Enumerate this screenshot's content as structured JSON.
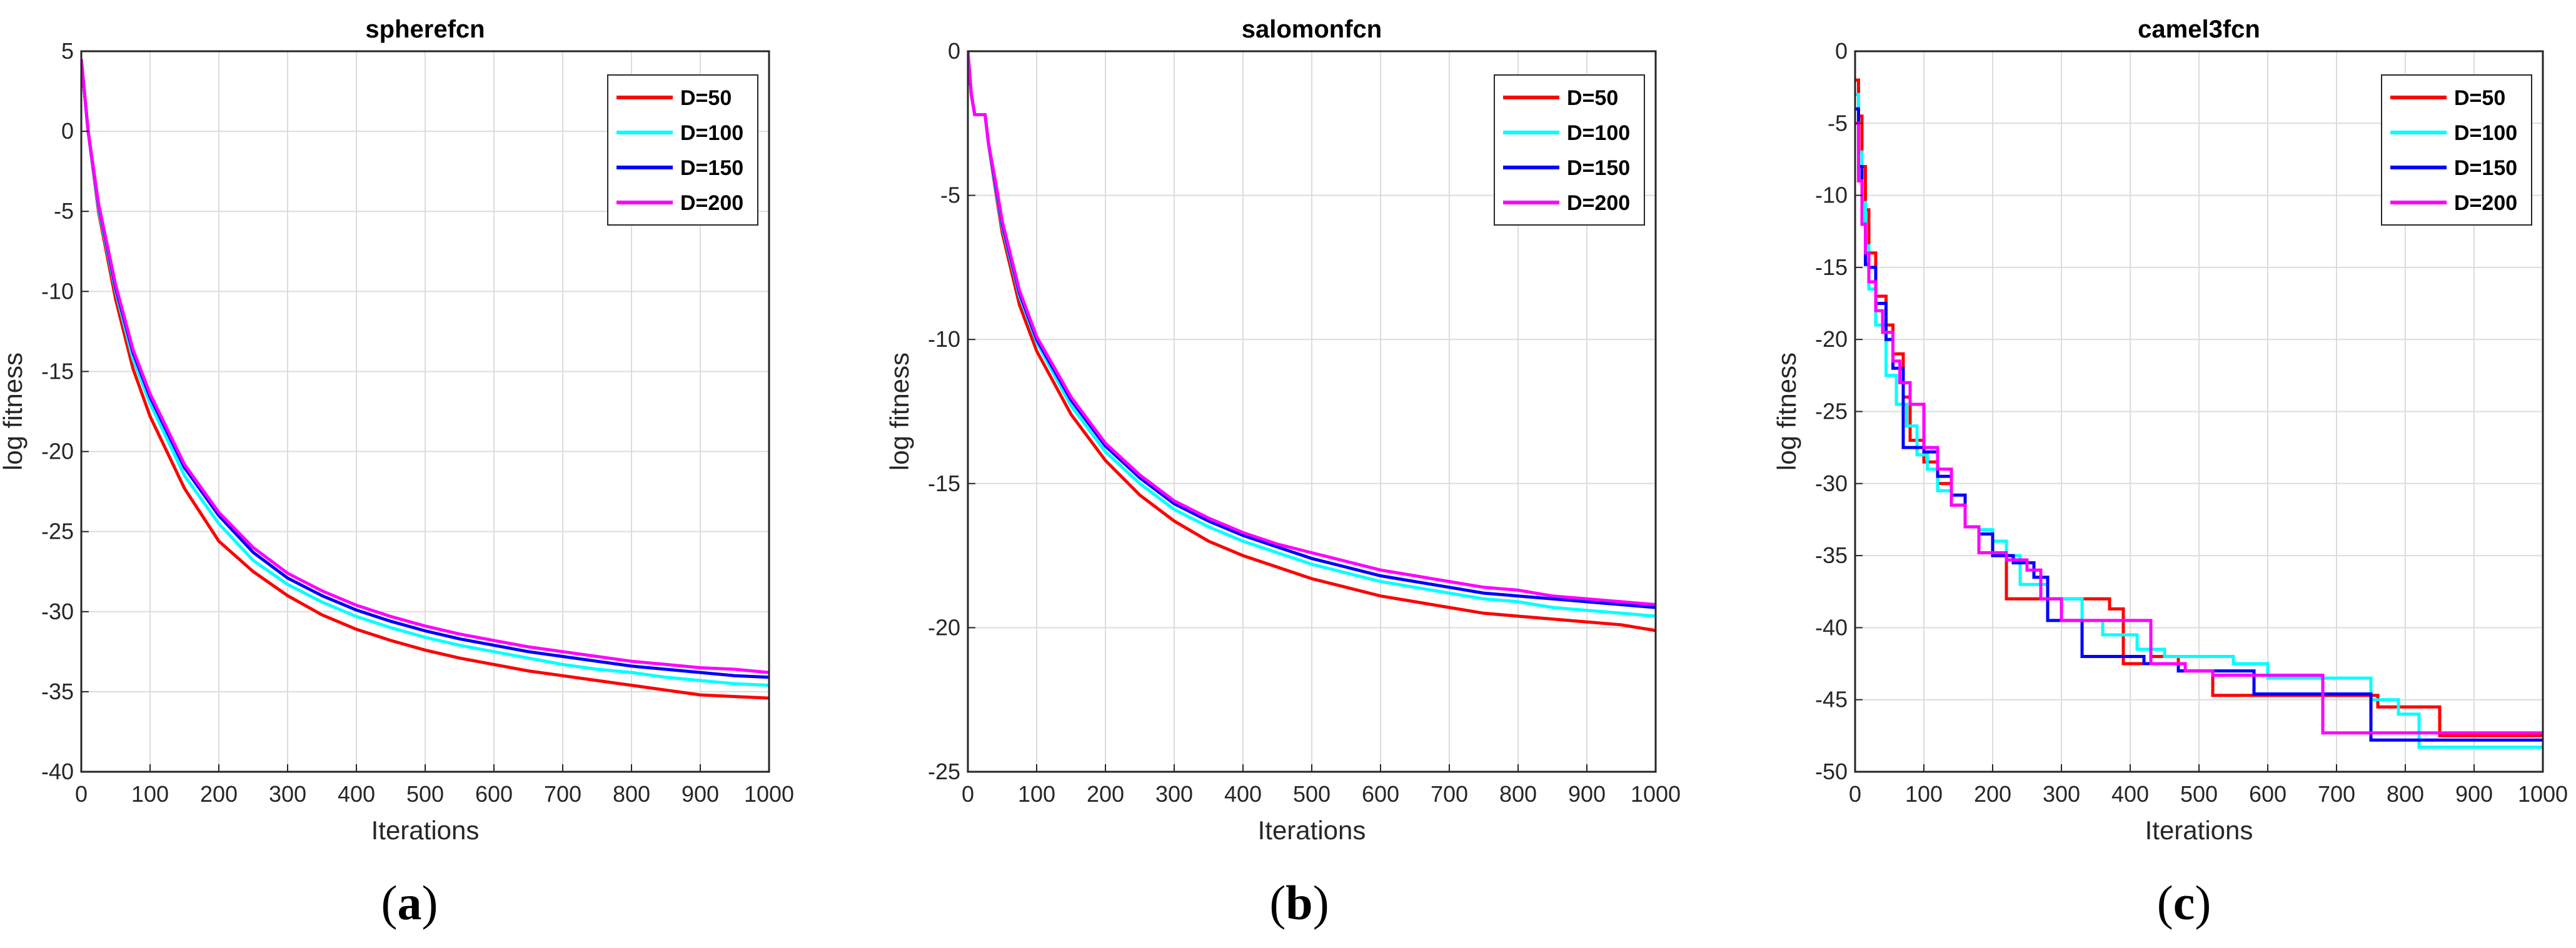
{
  "chart_data": [
    {
      "type": "line",
      "title": "spherefcn",
      "xlabel": "Iterations",
      "ylabel": "log fitness",
      "caption": "a",
      "xlim": [
        0,
        1000
      ],
      "ylim": [
        -40,
        5
      ],
      "xticks": [
        0,
        100,
        200,
        300,
        400,
        500,
        600,
        700,
        800,
        900,
        1000
      ],
      "yticks": [
        5,
        0,
        -5,
        -10,
        -15,
        -20,
        -25,
        -30,
        -35,
        -40
      ],
      "grid": true,
      "legend_position": "top-right",
      "series": [
        {
          "name": "D=50",
          "color": "#ff0000",
          "x": [
            0,
            10,
            25,
            50,
            75,
            100,
            150,
            200,
            250,
            300,
            350,
            400,
            450,
            500,
            550,
            600,
            650,
            700,
            750,
            800,
            850,
            900,
            950,
            1000
          ],
          "y": [
            4.5,
            0,
            -5,
            -10.5,
            -14.8,
            -17.8,
            -22.3,
            -25.6,
            -27.5,
            -29,
            -30.2,
            -31.1,
            -31.8,
            -32.4,
            -32.9,
            -33.3,
            -33.7,
            -34,
            -34.3,
            -34.6,
            -34.9,
            -35.2,
            -35.3,
            -35.4
          ]
        },
        {
          "name": "D=100",
          "color": "#00ffff",
          "x": [
            0,
            10,
            25,
            50,
            75,
            100,
            150,
            200,
            250,
            300,
            350,
            400,
            450,
            500,
            550,
            600,
            650,
            700,
            750,
            800,
            850,
            900,
            950,
            1000
          ],
          "y": [
            4.5,
            0,
            -4.8,
            -10,
            -14.2,
            -17,
            -21.5,
            -24.5,
            -26.8,
            -28.3,
            -29.4,
            -30.3,
            -31,
            -31.6,
            -32.1,
            -32.5,
            -32.9,
            -33.3,
            -33.6,
            -33.8,
            -34.1,
            -34.3,
            -34.5,
            -34.6
          ]
        },
        {
          "name": "D=150",
          "color": "#0000ff",
          "x": [
            0,
            10,
            25,
            50,
            75,
            100,
            150,
            200,
            250,
            300,
            350,
            400,
            450,
            500,
            550,
            600,
            650,
            700,
            750,
            800,
            850,
            900,
            950,
            1000
          ],
          "y": [
            4.5,
            0,
            -4.6,
            -9.8,
            -13.8,
            -16.6,
            -21,
            -24,
            -26.3,
            -27.9,
            -29,
            -29.9,
            -30.6,
            -31.2,
            -31.7,
            -32.1,
            -32.5,
            -32.8,
            -33.1,
            -33.4,
            -33.6,
            -33.8,
            -34,
            -34.1
          ]
        },
        {
          "name": "D=200",
          "color": "#ff00ff",
          "x": [
            0,
            10,
            25,
            50,
            75,
            100,
            150,
            200,
            250,
            300,
            350,
            400,
            450,
            500,
            550,
            600,
            650,
            700,
            750,
            800,
            850,
            900,
            950,
            1000
          ],
          "y": [
            4.5,
            0,
            -4.5,
            -9.6,
            -13.6,
            -16.4,
            -20.8,
            -23.8,
            -26,
            -27.6,
            -28.7,
            -29.6,
            -30.3,
            -30.9,
            -31.4,
            -31.8,
            -32.2,
            -32.5,
            -32.8,
            -33.1,
            -33.3,
            -33.5,
            -33.6,
            -33.8
          ]
        }
      ]
    },
    {
      "type": "line",
      "title": "salomonfcn",
      "xlabel": "Iterations",
      "ylabel": "log fitness",
      "caption": "b",
      "xlim": [
        0,
        1000
      ],
      "ylim": [
        -25,
        0
      ],
      "xticks": [
        0,
        100,
        200,
        300,
        400,
        500,
        600,
        700,
        800,
        900,
        1000
      ],
      "yticks": [
        0,
        -5,
        -10,
        -15,
        -20,
        -25
      ],
      "grid": true,
      "legend_position": "top-right",
      "series": [
        {
          "name": "D=50",
          "color": "#ff0000",
          "x": [
            0,
            5,
            10,
            25,
            30,
            40,
            50,
            75,
            100,
            150,
            200,
            250,
            300,
            350,
            400,
            450,
            500,
            550,
            600,
            650,
            700,
            750,
            800,
            850,
            900,
            950,
            1000
          ],
          "y": [
            0,
            -1.5,
            -2.2,
            -2.2,
            -3.2,
            -4.8,
            -6.3,
            -8.8,
            -10.4,
            -12.6,
            -14.2,
            -15.4,
            -16.3,
            -17,
            -17.5,
            -17.9,
            -18.3,
            -18.6,
            -18.9,
            -19.1,
            -19.3,
            -19.5,
            -19.6,
            -19.7,
            -19.8,
            -19.9,
            -20.1
          ]
        },
        {
          "name": "D=100",
          "color": "#00ffff",
          "x": [
            0,
            5,
            10,
            25,
            30,
            40,
            50,
            75,
            100,
            150,
            200,
            250,
            300,
            350,
            400,
            450,
            500,
            550,
            600,
            650,
            700,
            750,
            800,
            850,
            900,
            950,
            1000
          ],
          "y": [
            0,
            -1.5,
            -2.2,
            -2.2,
            -3.2,
            -4.7,
            -6.1,
            -8.5,
            -10.1,
            -12.3,
            -13.9,
            -15,
            -15.9,
            -16.5,
            -17,
            -17.4,
            -17.8,
            -18.1,
            -18.4,
            -18.6,
            -18.8,
            -19,
            -19.1,
            -19.3,
            -19.4,
            -19.5,
            -19.6
          ]
        },
        {
          "name": "D=150",
          "color": "#0000ff",
          "x": [
            0,
            5,
            10,
            25,
            30,
            40,
            50,
            75,
            100,
            150,
            200,
            250,
            300,
            350,
            400,
            450,
            500,
            550,
            600,
            650,
            700,
            750,
            800,
            850,
            900,
            950,
            1000
          ],
          "y": [
            0,
            -1.5,
            -2.2,
            -2.2,
            -3.2,
            -4.6,
            -6,
            -8.4,
            -10,
            -12.1,
            -13.7,
            -14.8,
            -15.7,
            -16.3,
            -16.8,
            -17.2,
            -17.6,
            -17.9,
            -18.2,
            -18.4,
            -18.6,
            -18.8,
            -18.9,
            -19,
            -19.1,
            -19.2,
            -19.3
          ]
        },
        {
          "name": "D=200",
          "color": "#ff00ff",
          "x": [
            0,
            5,
            10,
            25,
            30,
            40,
            50,
            75,
            100,
            150,
            200,
            250,
            300,
            350,
            400,
            450,
            500,
            550,
            600,
            650,
            700,
            750,
            800,
            850,
            900,
            950,
            1000
          ],
          "y": [
            0,
            -1.5,
            -2.2,
            -2.2,
            -3.2,
            -4.5,
            -5.9,
            -8.3,
            -9.9,
            -12,
            -13.6,
            -14.7,
            -15.6,
            -16.2,
            -16.7,
            -17.1,
            -17.4,
            -17.7,
            -18,
            -18.2,
            -18.4,
            -18.6,
            -18.7,
            -18.9,
            -19,
            -19.1,
            -19.2
          ]
        }
      ]
    },
    {
      "type": "line",
      "title": "camel3fcn",
      "xlabel": "Iterations",
      "ylabel": "log fitness",
      "caption": "c",
      "xlim": [
        0,
        1000
      ],
      "ylim": [
        -50,
        0
      ],
      "xticks": [
        0,
        100,
        200,
        300,
        400,
        500,
        600,
        700,
        800,
        900,
        1000
      ],
      "yticks": [
        0,
        -5,
        -10,
        -15,
        -20,
        -25,
        -30,
        -35,
        -40,
        -45,
        -50
      ],
      "grid": true,
      "legend_position": "top-right",
      "step": true,
      "series": [
        {
          "name": "D=50",
          "color": "#ff0000",
          "x": [
            0,
            5,
            10,
            15,
            20,
            30,
            45,
            55,
            70,
            80,
            100,
            120,
            140,
            160,
            180,
            200,
            220,
            300,
            370,
            390,
            430,
            470,
            520,
            620,
            700,
            760,
            850,
            1000
          ],
          "y": [
            -2,
            -4.5,
            -8,
            -11,
            -14,
            -17,
            -19,
            -21,
            -24,
            -27,
            -28.5,
            -30,
            -31.5,
            -33,
            -33.5,
            -34,
            -38,
            -38,
            -38.7,
            -42.5,
            -42,
            -43,
            -44.7,
            -44.7,
            -44.7,
            -45.5,
            -47.5,
            -47.5
          ]
        },
        {
          "name": "D=100",
          "color": "#00ffff",
          "x": [
            0,
            5,
            10,
            15,
            20,
            30,
            45,
            60,
            75,
            90,
            105,
            120,
            140,
            160,
            180,
            200,
            220,
            240,
            280,
            300,
            330,
            360,
            410,
            450,
            500,
            550,
            600,
            650,
            700,
            750,
            790,
            820,
            1000
          ],
          "y": [
            -3,
            -7,
            -10.5,
            -13.5,
            -16.5,
            -19,
            -22.5,
            -24.5,
            -26,
            -28,
            -29,
            -30.5,
            -31.5,
            -33,
            -33.2,
            -34,
            -35,
            -37,
            -38,
            -38,
            -39.5,
            -40.5,
            -41.5,
            -42,
            -42,
            -42.5,
            -43.5,
            -43.5,
            -43.5,
            -45,
            -46,
            -48.3,
            -48.3
          ]
        },
        {
          "name": "D=150",
          "color": "#0000ff",
          "x": [
            0,
            5,
            10,
            15,
            20,
            30,
            45,
            55,
            70,
            85,
            100,
            120,
            140,
            160,
            180,
            200,
            230,
            260,
            280,
            300,
            330,
            380,
            420,
            470,
            520,
            580,
            650,
            700,
            750,
            1000
          ],
          "y": [
            -4,
            -8,
            -12,
            -14.8,
            -15,
            -17.5,
            -20,
            -22,
            -27.5,
            -27.5,
            -27.8,
            -29.5,
            -30.8,
            -33,
            -33.5,
            -35,
            -35.5,
            -36.5,
            -39.5,
            -39.5,
            -42,
            -42,
            -42.5,
            -43,
            -43,
            -44.6,
            -44.6,
            -44.6,
            -47.8,
            -47.8
          ]
        },
        {
          "name": "D=200",
          "color": "#ff00ff",
          "x": [
            0,
            5,
            10,
            15,
            20,
            30,
            40,
            55,
            65,
            80,
            100,
            120,
            140,
            160,
            180,
            200,
            220,
            250,
            270,
            300,
            340,
            380,
            430,
            480,
            520,
            580,
            630,
            680,
            750,
            1000
          ],
          "y": [
            -5,
            -9,
            -12,
            -14,
            -16,
            -18,
            -19.5,
            -21.5,
            -23,
            -24.5,
            -27.5,
            -29,
            -31.5,
            -33,
            -34.8,
            -34.8,
            -35.3,
            -36,
            -38,
            -39.5,
            -39.5,
            -39.5,
            -42.5,
            -43,
            -43.3,
            -43.3,
            -43.3,
            -47.3,
            -47.3,
            -47.3
          ]
        }
      ]
    }
  ]
}
